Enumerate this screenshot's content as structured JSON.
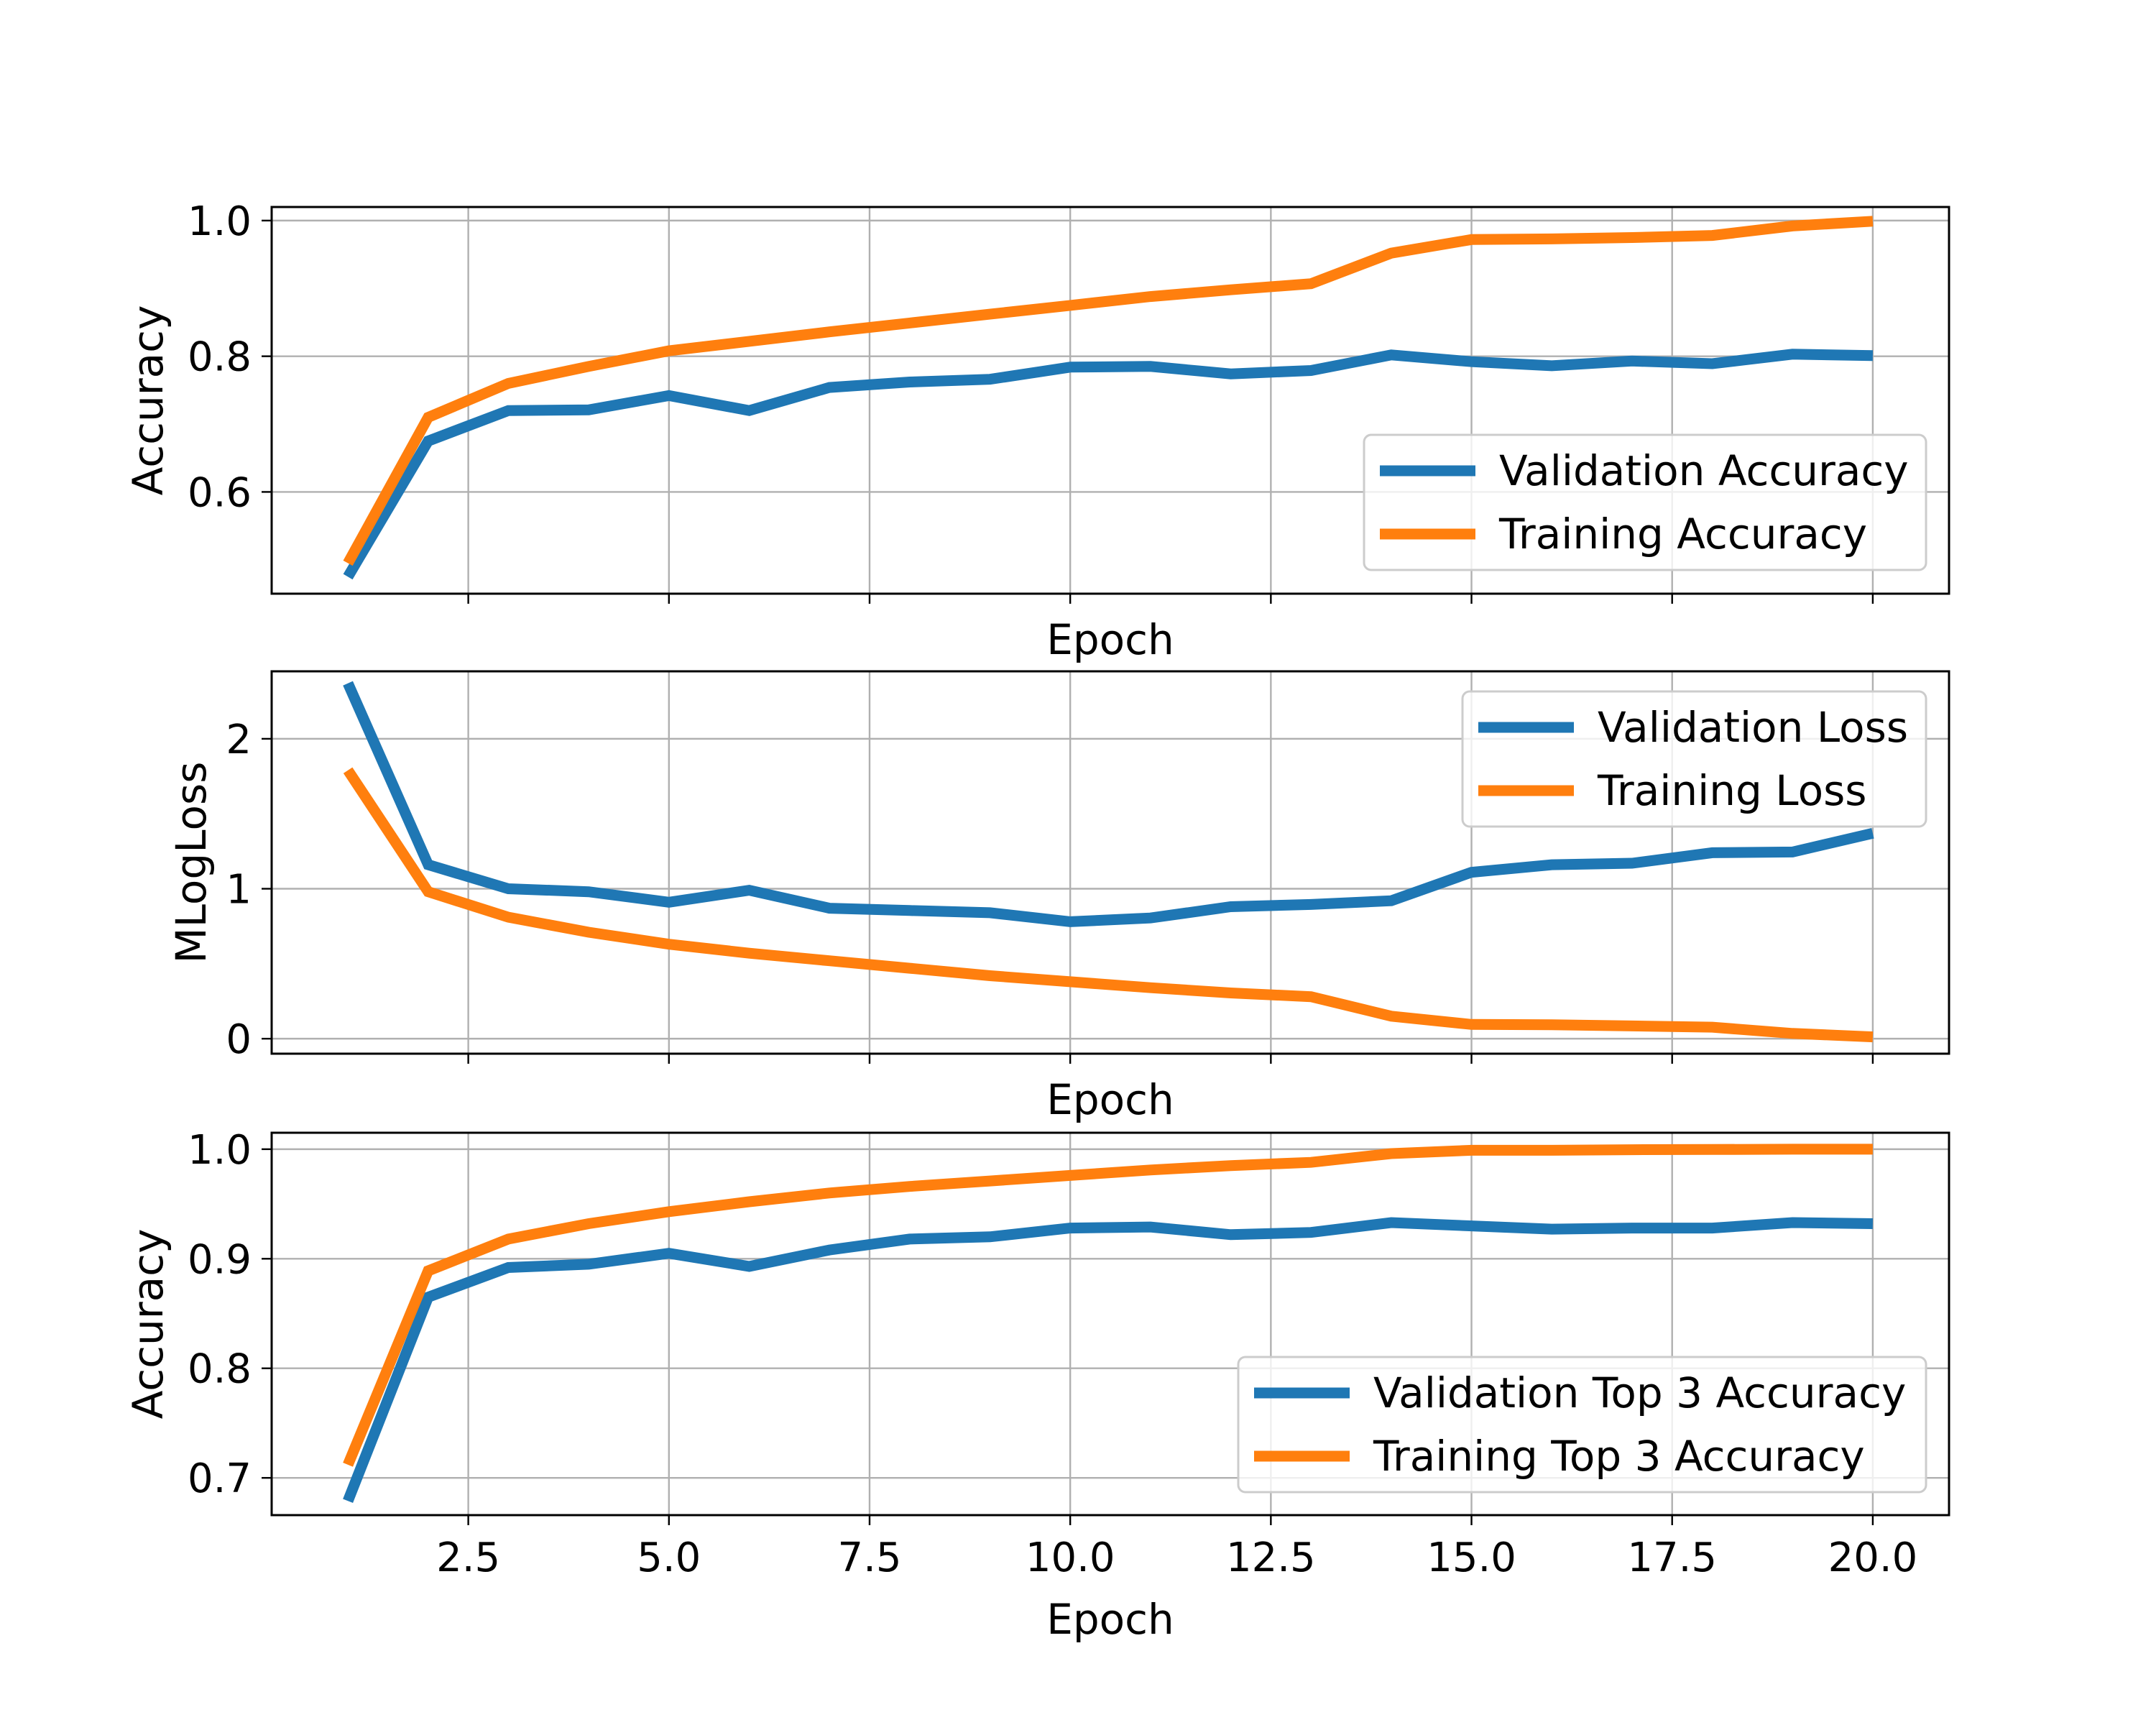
{
  "colors": {
    "validation": "#1f77b4",
    "training": "#ff7f0e",
    "grid": "#b0b0b0",
    "frame": "#000000"
  },
  "chart_data": [
    {
      "type": "line",
      "xlabel": "Epoch",
      "ylabel": "Accuracy",
      "x": [
        1,
        2,
        3,
        4,
        5,
        6,
        7,
        8,
        9,
        10,
        11,
        12,
        13,
        14,
        15,
        16,
        17,
        18,
        19,
        20
      ],
      "xlim": [
        0.05,
        20.95
      ],
      "ylim": [
        0.45,
        1.02
      ],
      "xticks": [
        2.5,
        5.0,
        7.5,
        10.0,
        12.5,
        15.0,
        17.5,
        20.0
      ],
      "xtick_labels": [],
      "yticks": [
        0.6,
        0.8,
        1.0
      ],
      "ytick_labels": [
        "0.6",
        "0.8",
        "1.0"
      ],
      "grid": true,
      "legend_position": "lower-right",
      "series": [
        {
          "name": "Validation Accuracy",
          "color": "#1f77b4",
          "values": [
            0.475,
            0.675,
            0.72,
            0.721,
            0.742,
            0.72,
            0.754,
            0.762,
            0.766,
            0.784,
            0.785,
            0.774,
            0.779,
            0.802,
            0.792,
            0.786,
            0.793,
            0.789,
            0.803,
            0.801
          ]
        },
        {
          "name": "Training Accuracy",
          "color": "#ff7f0e",
          "values": [
            0.495,
            0.71,
            0.76,
            0.785,
            0.808,
            0.822,
            0.836,
            0.849,
            0.862,
            0.875,
            0.888,
            0.898,
            0.907,
            0.952,
            0.972,
            0.973,
            0.975,
            0.978,
            0.992,
            0.999
          ]
        }
      ]
    },
    {
      "type": "line",
      "xlabel": "Epoch",
      "ylabel": "MLogLoss",
      "x": [
        1,
        2,
        3,
        4,
        5,
        6,
        7,
        8,
        9,
        10,
        11,
        12,
        13,
        14,
        15,
        16,
        17,
        18,
        19,
        20
      ],
      "xlim": [
        0.05,
        20.95
      ],
      "ylim": [
        -0.1,
        2.45
      ],
      "xticks": [
        2.5,
        5.0,
        7.5,
        10.0,
        12.5,
        15.0,
        17.5,
        20.0
      ],
      "xtick_labels": [],
      "yticks": [
        0,
        1,
        2
      ],
      "ytick_labels": [
        "0",
        "1",
        "2"
      ],
      "grid": true,
      "legend_position": "upper-right",
      "series": [
        {
          "name": "Validation Loss",
          "color": "#1f77b4",
          "values": [
            2.37,
            1.16,
            1.0,
            0.98,
            0.91,
            0.99,
            0.87,
            0.855,
            0.84,
            0.78,
            0.805,
            0.88,
            0.895,
            0.92,
            1.11,
            1.16,
            1.17,
            1.24,
            1.245,
            1.37
          ]
        },
        {
          "name": "Training Loss",
          "color": "#ff7f0e",
          "values": [
            1.79,
            0.98,
            0.81,
            0.71,
            0.63,
            0.57,
            0.52,
            0.47,
            0.42,
            0.38,
            0.34,
            0.305,
            0.28,
            0.15,
            0.095,
            0.093,
            0.085,
            0.077,
            0.035,
            0.012
          ]
        }
      ]
    },
    {
      "type": "line",
      "xlabel": "Epoch",
      "ylabel": "Accuracy",
      "x": [
        1,
        2,
        3,
        4,
        5,
        6,
        7,
        8,
        9,
        10,
        11,
        12,
        13,
        14,
        15,
        16,
        17,
        18,
        19,
        20
      ],
      "xlim": [
        0.05,
        20.95
      ],
      "ylim": [
        0.666,
        1.015
      ],
      "xticks": [
        2.5,
        5.0,
        7.5,
        10.0,
        12.5,
        15.0,
        17.5,
        20.0
      ],
      "xtick_labels": [
        "2.5",
        "5.0",
        "7.5",
        "10.0",
        "12.5",
        "15.0",
        "17.5",
        "20.0"
      ],
      "yticks": [
        0.7,
        0.8,
        0.9,
        1.0
      ],
      "ytick_labels": [
        "0.7",
        "0.8",
        "0.9",
        "1.0"
      ],
      "grid": true,
      "legend_position": "lower-right",
      "series": [
        {
          "name": "Validation Top 3 Accuracy",
          "color": "#1f77b4",
          "values": [
            0.679,
            0.865,
            0.892,
            0.895,
            0.905,
            0.893,
            0.908,
            0.918,
            0.92,
            0.928,
            0.929,
            0.922,
            0.924,
            0.933,
            0.93,
            0.927,
            0.928,
            0.928,
            0.933,
            0.932
          ]
        },
        {
          "name": "Training Top 3 Accuracy",
          "color": "#ff7f0e",
          "values": [
            0.712,
            0.889,
            0.918,
            0.932,
            0.943,
            0.952,
            0.96,
            0.966,
            0.971,
            0.976,
            0.981,
            0.985,
            0.988,
            0.996,
            0.999,
            0.999,
            0.9995,
            0.9997,
            1.0,
            1.0
          ]
        }
      ]
    }
  ]
}
